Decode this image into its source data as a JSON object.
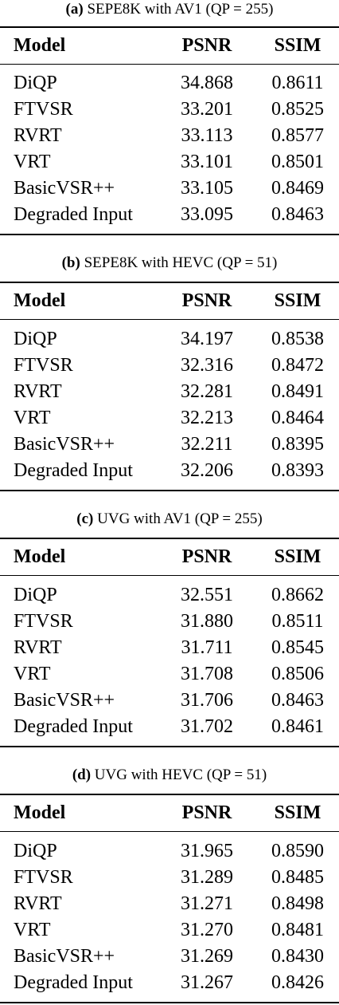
{
  "tables": [
    {
      "caption_letter": "(a)",
      "caption_text": " SEPE8K with AV1 (QP = 255)",
      "headers": [
        "Model",
        "PSNR",
        "SSIM"
      ],
      "rows": [
        [
          "DiQP",
          "34.868",
          "0.8611"
        ],
        [
          "FTVSR",
          "33.201",
          "0.8525"
        ],
        [
          "RVRT",
          "33.113",
          "0.8577"
        ],
        [
          "VRT",
          "33.101",
          "0.8501"
        ],
        [
          "BasicVSR++",
          "33.105",
          "0.8469"
        ],
        [
          "Degraded Input",
          "33.095",
          "0.8463"
        ]
      ]
    },
    {
      "caption_letter": "(b)",
      "caption_text": " SEPE8K with HEVC (QP = 51)",
      "headers": [
        "Model",
        "PSNR",
        "SSIM"
      ],
      "rows": [
        [
          "DiQP",
          "34.197",
          "0.8538"
        ],
        [
          "FTVSR",
          "32.316",
          "0.8472"
        ],
        [
          "RVRT",
          "32.281",
          "0.8491"
        ],
        [
          "VRT",
          "32.213",
          "0.8464"
        ],
        [
          "BasicVSR++",
          "32.211",
          "0.8395"
        ],
        [
          "Degraded Input",
          "32.206",
          "0.8393"
        ]
      ]
    },
    {
      "caption_letter": "(c)",
      "caption_text": " UVG with AV1 (QP = 255)",
      "headers": [
        "Model",
        "PSNR",
        "SSIM"
      ],
      "rows": [
        [
          "DiQP",
          "32.551",
          "0.8662"
        ],
        [
          "FTVSR",
          "31.880",
          "0.8511"
        ],
        [
          "RVRT",
          "31.711",
          "0.8545"
        ],
        [
          "VRT",
          "31.708",
          "0.8506"
        ],
        [
          "BasicVSR++",
          "31.706",
          "0.8463"
        ],
        [
          "Degraded Input",
          "31.702",
          "0.8461"
        ]
      ]
    },
    {
      "caption_letter": "(d)",
      "caption_text": " UVG with HEVC (QP = 51)",
      "headers": [
        "Model",
        "PSNR",
        "SSIM"
      ],
      "rows": [
        [
          "DiQP",
          "31.965",
          "0.8590"
        ],
        [
          "FTVSR",
          "31.289",
          "0.8485"
        ],
        [
          "RVRT",
          "31.271",
          "0.8498"
        ],
        [
          "VRT",
          "31.270",
          "0.8481"
        ],
        [
          "BasicVSR++",
          "31.269",
          "0.8430"
        ],
        [
          "Degraded Input",
          "31.267",
          "0.8426"
        ]
      ]
    }
  ]
}
